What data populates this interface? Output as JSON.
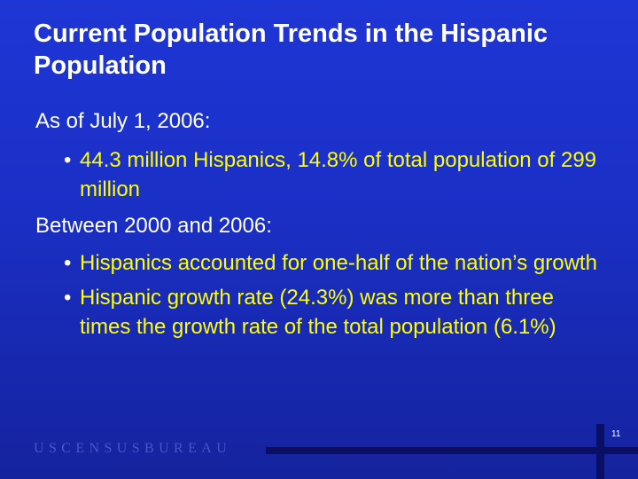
{
  "slide": {
    "title": "Current Population Trends in the Hispanic Population",
    "sections": [
      {
        "heading": "As of July 1, 2006:",
        "bullets": [
          "44.3 million Hispanics, 14.8% of total population of 299 million"
        ]
      },
      {
        "heading": "Between 2000 and 2006:",
        "bullets": [
          "Hispanics accounted for one-half of the nation’s growth",
          "Hispanic growth rate (24.3%) was more than three times the growth rate of the total population (6.1%)"
        ]
      }
    ],
    "footer": "USCENSUSBUREAU",
    "page_number": "11",
    "bullet_symbol": "•"
  },
  "colors": {
    "background": "#1f36d6",
    "title_text": "#ffffff",
    "bullet_text": "#ffff00",
    "footer_text": "#4b55c8",
    "rule": "#0a0f63"
  }
}
